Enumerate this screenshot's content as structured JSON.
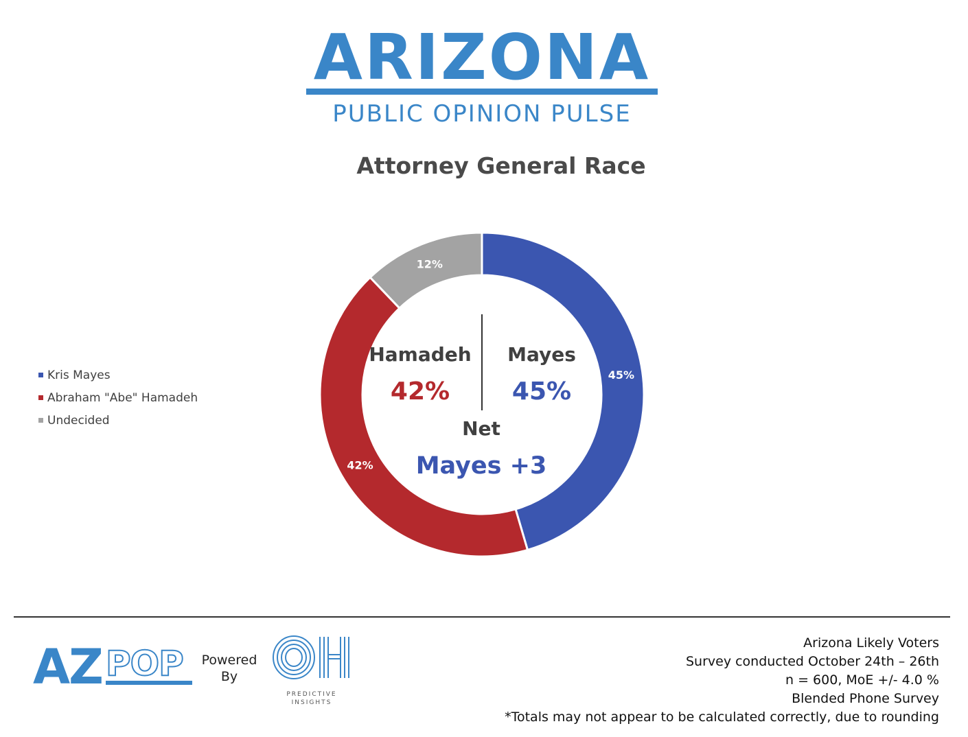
{
  "header": {
    "logo_title": "ARIZONA",
    "logo_subtitle": "PUBLIC OPINION PULSE",
    "chart_title": "Attorney General Race"
  },
  "colors": {
    "brand_blue": "#3a86c8",
    "mayes": "#3b56b0",
    "hamadeh": "#b4292d",
    "undecided": "#a3a3a3"
  },
  "chart_data": {
    "type": "pie",
    "variant": "donut",
    "title": "Attorney General Race",
    "legend_position": "left",
    "series": [
      {
        "name": "Kris Mayes",
        "value": 45,
        "label": "45%",
        "color": "#3b56b0"
      },
      {
        "name": "Abraham \"Abe\" Hamadeh",
        "value": 42,
        "label": "42%",
        "color": "#b4292d"
      },
      {
        "name": "Undecided",
        "value": 12,
        "label": "12%",
        "color": "#a3a3a3"
      }
    ]
  },
  "center": {
    "left_name": "Hamadeh",
    "left_pct": "42%",
    "right_name": "Mayes",
    "right_pct": "45%",
    "net_label": "Net",
    "net_value": "Mayes +3"
  },
  "footer": {
    "azpop_logo_text": "AZPOP",
    "powered_by": [
      "Powered",
      "By"
    ],
    "oh_logo_text": "OH",
    "oh_logo_caption": [
      "PREDICTIVE",
      "INSIGHTS"
    ],
    "notes": [
      "Arizona Likely Voters",
      "Survey conducted October 24th – 26th",
      "n = 600, MoE +/- 4.0 %",
      "Blended Phone Survey",
      "*Totals may not appear to be calculated correctly, due to rounding"
    ]
  }
}
